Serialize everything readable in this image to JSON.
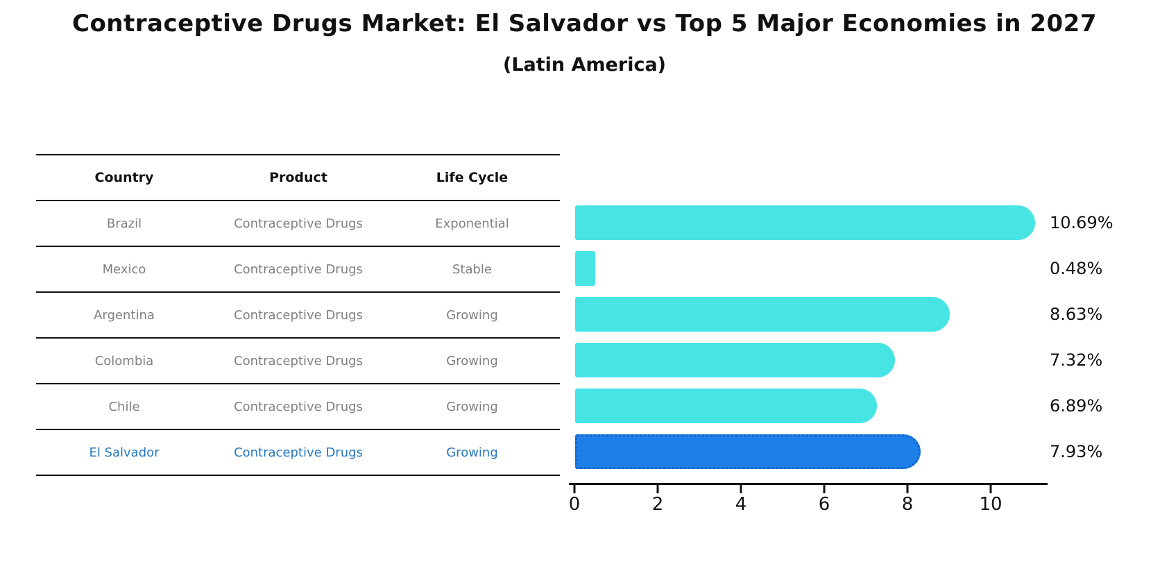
{
  "title": "Contraceptive Drugs Market: El Salvador vs Top 5 Major Economies in 2027",
  "subtitle": "(Latin America)",
  "table": {
    "headers": [
      "Country",
      "Product",
      "Life Cycle"
    ],
    "rows": [
      {
        "country": "Brazil",
        "product": "Contraceptive Drugs",
        "life_cycle": "Exponential",
        "highlight": false
      },
      {
        "country": "Mexico",
        "product": "Contraceptive Drugs",
        "life_cycle": "Stable",
        "highlight": false
      },
      {
        "country": "Argentina",
        "product": "Contraceptive Drugs",
        "life_cycle": "Growing",
        "highlight": false
      },
      {
        "country": "Colombia",
        "product": "Contraceptive Drugs",
        "life_cycle": "Growing",
        "highlight": false
      },
      {
        "country": "Chile",
        "product": "Contraceptive Drugs",
        "life_cycle": "Growing",
        "highlight": false
      },
      {
        "country": "El Salvador",
        "product": "Contraceptive Drugs",
        "life_cycle": "Growing",
        "highlight": true
      }
    ]
  },
  "chart_data": {
    "type": "bar",
    "orientation": "horizontal",
    "title": "Contraceptive Drugs Market: El Salvador vs Top 5 Major Economies in 2027",
    "subtitle": "(Latin America)",
    "categories": [
      "Brazil",
      "Mexico",
      "Argentina",
      "Colombia",
      "Chile",
      "El Salvador"
    ],
    "values": [
      10.69,
      0.48,
      8.63,
      7.32,
      6.89,
      7.93
    ],
    "value_labels": [
      "10.69%",
      "0.48%",
      "8.63%",
      "7.32%",
      "6.89%",
      "7.93%"
    ],
    "xlabel": "",
    "ylabel": "",
    "xlim": [
      0,
      11.33
    ],
    "xticks": [
      0,
      2,
      4,
      6,
      8,
      10
    ],
    "grid": false,
    "legend": false,
    "highlight_index": 5
  },
  "colors": {
    "bar": "#47e4e4",
    "highlight_bar": "#1e7fe8",
    "highlight_border": "#1565cc",
    "highlight_text": "#2878be",
    "row_text": "#7f7f7f",
    "header_text": "#111111",
    "axis": "#111111"
  }
}
